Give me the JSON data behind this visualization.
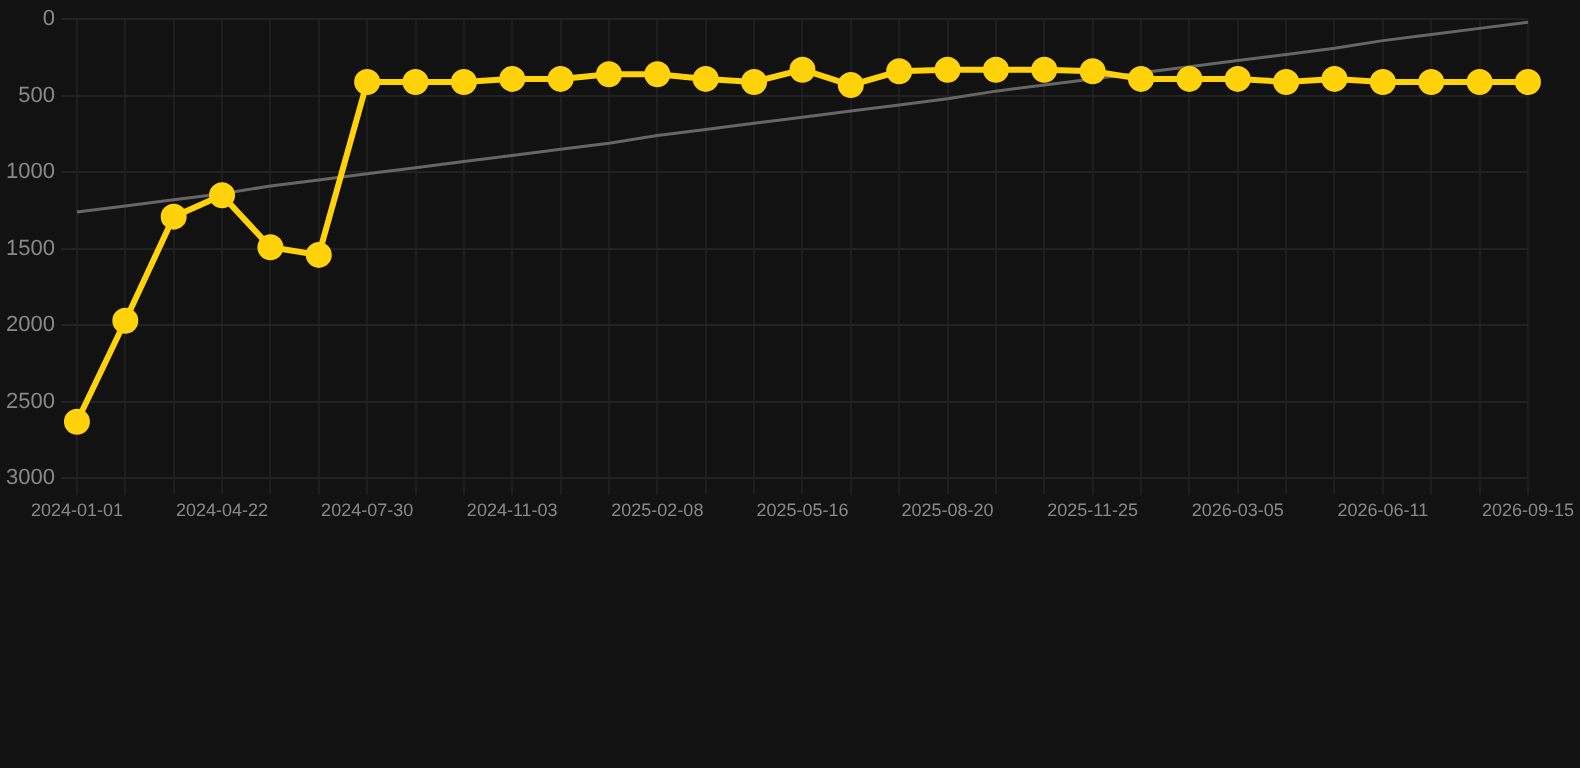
{
  "chart_data": {
    "type": "line",
    "categories": [
      "2024-01-01",
      null,
      null,
      "2024-04-22",
      null,
      null,
      "2024-07-30",
      null,
      null,
      "2024-11-03",
      null,
      null,
      "2025-02-08",
      null,
      null,
      "2025-05-16",
      null,
      null,
      "2025-08-20",
      null,
      null,
      "2025-11-25",
      null,
      null,
      "2026-03-05",
      null,
      null,
      "2026-06-11",
      null,
      null,
      "2026-09-15"
    ],
    "series": [
      {
        "color": "#ffd20a",
        "marker": "circle",
        "values": [
          2630,
          1970,
          1290,
          1150,
          1490,
          1540,
          410,
          410,
          410,
          390,
          390,
          360,
          360,
          390,
          410,
          330,
          430,
          340,
          330,
          330,
          330,
          340,
          390,
          390,
          390,
          410,
          390,
          410,
          410,
          410,
          410
        ]
      },
      {
        "type": "line",
        "color": "#666666",
        "marker": "none",
        "values": [
          1260,
          1220,
          1180,
          1140,
          1090,
          1050,
          1010,
          970,
          930,
          890,
          850,
          810,
          760,
          720,
          680,
          640,
          600,
          560,
          520,
          470,
          430,
          390,
          350,
          310,
          270,
          230,
          190,
          140,
          100,
          60,
          20
        ]
      }
    ],
    "ylim": [
      3000,
      0
    ],
    "yticks": [
      0,
      500,
      1000,
      1500,
      2000,
      2500,
      3000
    ],
    "grid": true,
    "legend": false
  }
}
